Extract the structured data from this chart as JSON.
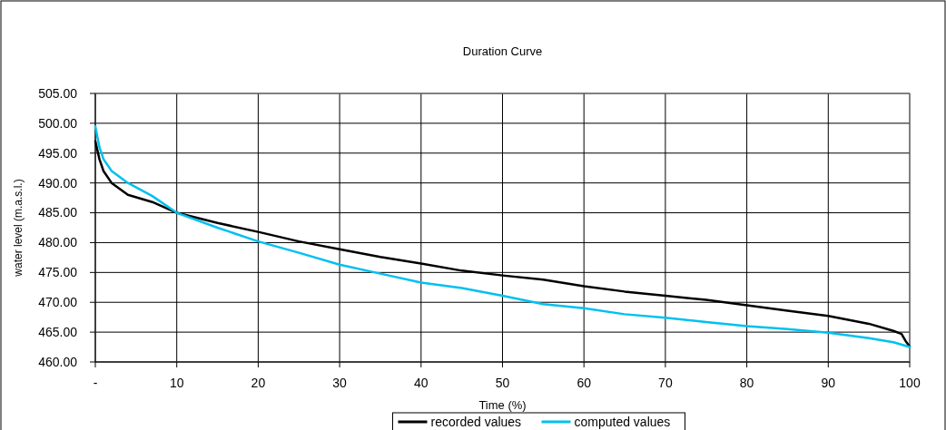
{
  "chart_data": {
    "type": "line",
    "title": "Duration Curve",
    "xlabel": "Time (%)",
    "ylabel": "water level (m.a.s.l.)",
    "xlim": [
      0,
      100
    ],
    "xticks": [
      {
        "value": 0,
        "label": "-"
      },
      10,
      20,
      30,
      40,
      50,
      60,
      70,
      80,
      90,
      100
    ],
    "ylim": [
      460,
      505
    ],
    "yticks": [
      {
        "value": 460,
        "label": "460.00"
      },
      {
        "value": 465,
        "label": "465.00"
      },
      {
        "value": 470,
        "label": "470.00"
      },
      {
        "value": 475,
        "label": "475.00"
      },
      {
        "value": 480,
        "label": "480.00"
      },
      {
        "value": 485,
        "label": "485.00"
      },
      {
        "value": 490,
        "label": "490.00"
      },
      {
        "value": 495,
        "label": "495.00"
      },
      {
        "value": 500,
        "label": "500.00"
      },
      {
        "value": 505,
        "label": "505.00"
      }
    ],
    "grid": true,
    "legend": "bottom",
    "marker": "none",
    "line_style": "solid",
    "series": [
      {
        "name": "recorded values",
        "color": "#000000",
        "x": [
          0,
          0.5,
          1,
          2,
          4,
          7,
          10,
          15,
          20,
          25,
          30,
          35,
          40,
          45,
          50,
          55,
          60,
          65,
          70,
          75,
          80,
          85,
          90,
          95,
          98,
          99,
          99.5,
          100
        ],
        "values": [
          497,
          494,
          492,
          490,
          488,
          486.8,
          485,
          483.3,
          481.8,
          480.2,
          478.9,
          477.6,
          476.5,
          475.3,
          474.5,
          473.8,
          472.7,
          471.8,
          471.1,
          470.4,
          469.5,
          468.6,
          467.7,
          466.4,
          465.2,
          464.7,
          463.5,
          462.6
        ]
      },
      {
        "name": "computed values",
        "color": "#00c0f0",
        "x": [
          0,
          0.5,
          1,
          2,
          4,
          7,
          10,
          15,
          20,
          25,
          30,
          35,
          40,
          45,
          50,
          55,
          60,
          65,
          70,
          75,
          80,
          85,
          90,
          95,
          98,
          100
        ],
        "values": [
          499.5,
          496,
          494,
          492,
          490,
          487.8,
          485,
          482.5,
          480.2,
          478.3,
          476.3,
          474.8,
          473.3,
          472.4,
          471.1,
          469.7,
          469,
          468,
          467.4,
          466.7,
          466,
          465.5,
          464.9,
          464,
          463.3,
          462.5
        ]
      }
    ]
  }
}
